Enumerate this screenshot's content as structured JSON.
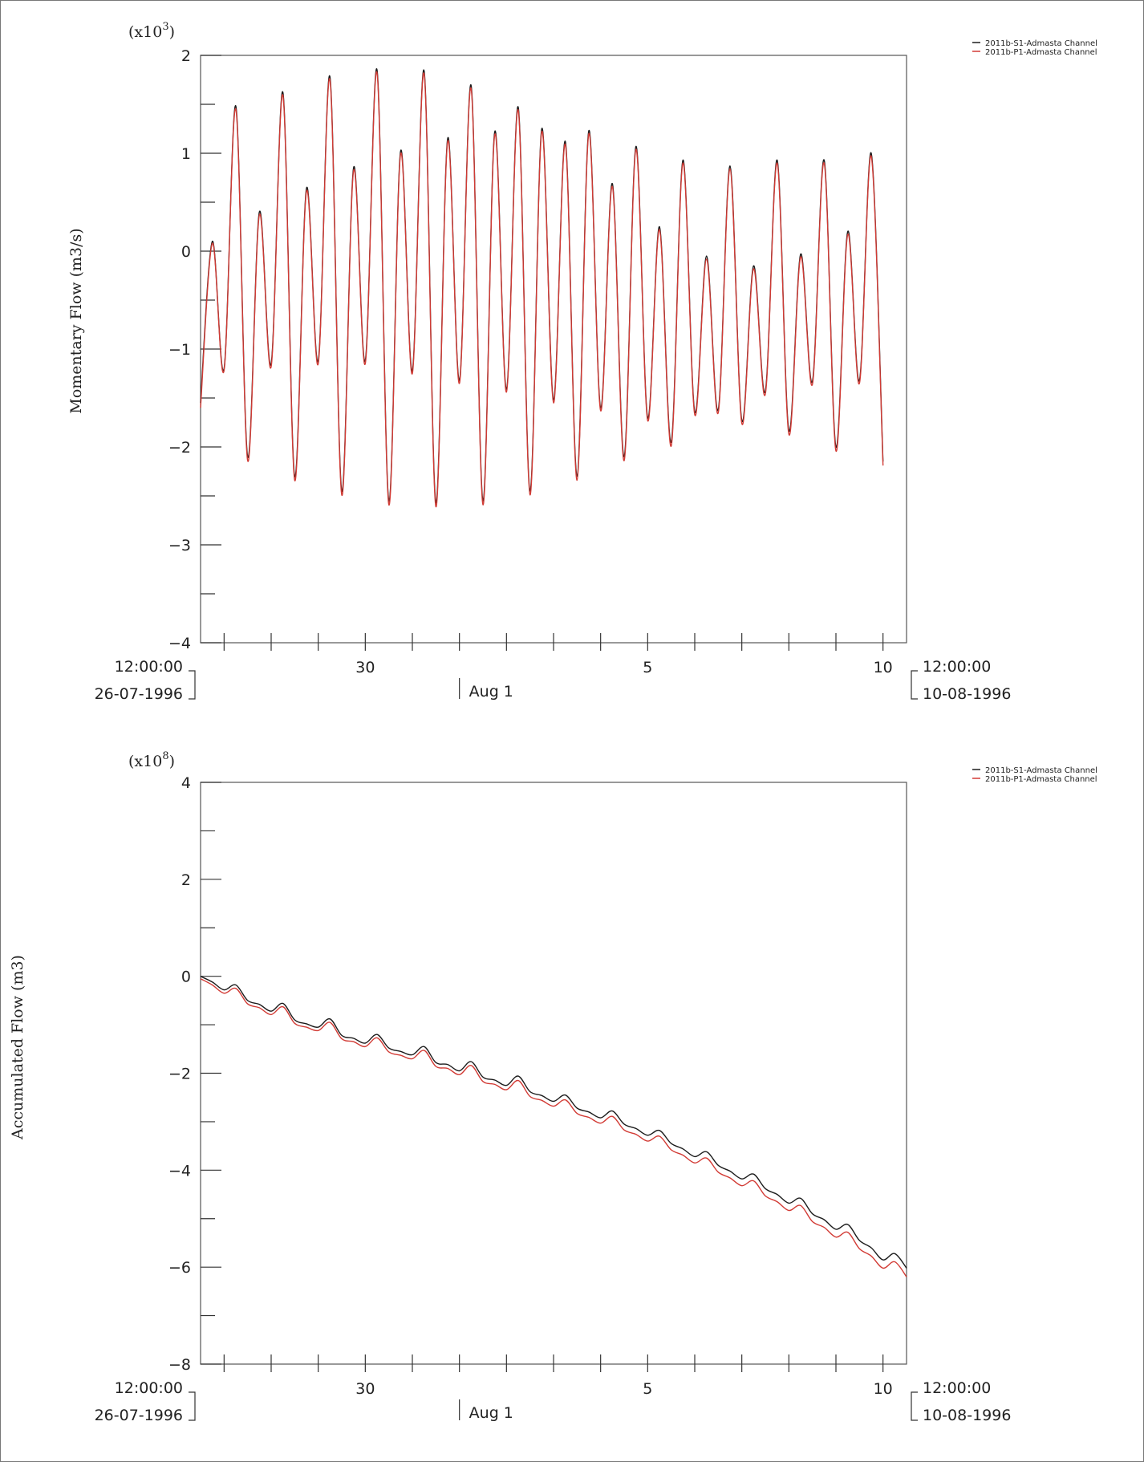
{
  "colors": {
    "series1": "#1c1c1c",
    "series2": "#d23b35",
    "axis": "#333333",
    "frame": "#555555"
  },
  "chart_data": [
    {
      "type": "line",
      "ylabel": "Momentary Flow (m3/s)",
      "y_multiplier": "(x10",
      "y_multiplier_exp": "3",
      "ylim": [
        -4,
        2
      ],
      "yticks": [
        -4,
        -3,
        -2,
        -1,
        0,
        1,
        2
      ],
      "ytick_labels": [
        "−4",
        "−3",
        "−2",
        "−1",
        "0",
        "1",
        "2"
      ],
      "xlim": [
        "1996-07-26 12:00",
        "1996-08-10 12:00"
      ],
      "x_day_labels": [
        {
          "date": "1996-07-30 00:00",
          "label": "30"
        },
        {
          "date": "1996-08-05 00:00",
          "label": "5"
        },
        {
          "date": "1996-08-10 00:00",
          "label": "10"
        }
      ],
      "x_month_label": {
        "date": "1996-08-01 00:00",
        "label": "Aug 1"
      },
      "x_start": {
        "time": "12:00:00",
        "date": "26-07-1996"
      },
      "x_end": {
        "time": "12:00:00",
        "date": "10-08-1996"
      },
      "legend_position": "top-right",
      "grid": false,
      "series": [
        {
          "name": "2011b-S1-Admasta Channel",
          "x_start": "1996-07-26 12:00",
          "x_step_hours": 6,
          "values": [
            -1.55,
            0.1,
            -1.2,
            1.48,
            -2.1,
            0.4,
            -1.15,
            1.62,
            -2.3,
            0.64,
            -1.12,
            1.78,
            -2.45,
            0.85,
            -1.12,
            1.85,
            -2.55,
            1.02,
            -1.22,
            1.84,
            -2.57,
            1.15,
            -1.32,
            1.69,
            -2.55,
            1.22,
            -1.41,
            1.47,
            -2.45,
            1.25,
            -1.52,
            1.12,
            -2.3,
            1.23,
            -1.6,
            0.69,
            -2.1,
            1.07,
            -1.7,
            0.25,
            -1.95,
            0.93,
            -1.64,
            -0.05,
            -1.62,
            0.87,
            -1.73,
            -0.15,
            -1.43,
            0.93,
            -1.83,
            -0.03,
            -1.33,
            0.93,
            -2.0,
            0.2,
            -1.32,
            1.0,
            -2.15
          ]
        },
        {
          "name": "2011b-P1-Admasta Channel",
          "x_start": "1996-07-26 12:00",
          "x_step_hours": 6,
          "values": [
            -1.6,
            0.08,
            -1.22,
            1.45,
            -2.14,
            0.37,
            -1.18,
            1.59,
            -2.34,
            0.61,
            -1.15,
            1.75,
            -2.49,
            0.82,
            -1.15,
            1.82,
            -2.59,
            0.99,
            -1.25,
            1.81,
            -2.61,
            1.12,
            -1.35,
            1.66,
            -2.59,
            1.19,
            -1.44,
            1.44,
            -2.49,
            1.22,
            -1.55,
            1.09,
            -2.34,
            1.2,
            -1.63,
            0.66,
            -2.14,
            1.04,
            -1.73,
            0.22,
            -1.99,
            0.9,
            -1.67,
            -0.08,
            -1.65,
            0.84,
            -1.76,
            -0.18,
            -1.46,
            0.9,
            -1.87,
            -0.06,
            -1.36,
            0.9,
            -2.04,
            0.17,
            -1.35,
            0.97,
            -2.19
          ]
        }
      ]
    },
    {
      "type": "line",
      "ylabel": "Accumulated Flow (m3)",
      "y_multiplier": "(x10",
      "y_multiplier_exp": "8",
      "ylim": [
        -8,
        4
      ],
      "yticks": [
        -8,
        -6,
        -4,
        -2,
        0,
        2,
        4
      ],
      "ytick_labels": [
        "−8",
        "−6",
        "−4",
        "−2",
        "0",
        "2",
        "4"
      ],
      "xlim": [
        "1996-07-26 12:00",
        "1996-08-10 12:00"
      ],
      "x_day_labels": [
        {
          "date": "1996-07-30 00:00",
          "label": "30"
        },
        {
          "date": "1996-08-05 00:00",
          "label": "5"
        },
        {
          "date": "1996-08-10 00:00",
          "label": "10"
        }
      ],
      "x_month_label": {
        "date": "1996-08-01 00:00",
        "label": "Aug 1"
      },
      "x_start": {
        "time": "12:00:00",
        "date": "26-07-1996"
      },
      "x_end": {
        "time": "12:00:00",
        "date": "10-08-1996"
      },
      "legend_position": "top-right",
      "grid": false,
      "series": [
        {
          "name": "2011b-S1-Admasta Channel",
          "x_start": "1996-07-26 12:00",
          "x_step_hours": 6,
          "values": [
            0,
            -0.12,
            -0.28,
            -0.18,
            -0.5,
            -0.58,
            -0.72,
            -0.56,
            -0.9,
            -0.98,
            -1.05,
            -0.88,
            -1.22,
            -1.28,
            -1.38,
            -1.2,
            -1.48,
            -1.55,
            -1.62,
            -1.45,
            -1.78,
            -1.82,
            -1.95,
            -1.76,
            -2.08,
            -2.14,
            -2.25,
            -2.06,
            -2.38,
            -2.46,
            -2.58,
            -2.45,
            -2.72,
            -2.8,
            -2.92,
            -2.78,
            -3.05,
            -3.14,
            -3.28,
            -3.18,
            -3.45,
            -3.56,
            -3.72,
            -3.62,
            -3.9,
            -4.02,
            -4.18,
            -4.08,
            -4.38,
            -4.5,
            -4.68,
            -4.58,
            -4.9,
            -5.02,
            -5.22,
            -5.12,
            -5.45,
            -5.6,
            -5.85,
            -5.72,
            -6.02,
            -6.12,
            -6.3
          ]
        },
        {
          "name": "2011b-P1-Admasta Channel",
          "x_start": "1996-07-26 12:00",
          "x_step_hours": 6,
          "values": [
            -0.05,
            -0.18,
            -0.35,
            -0.25,
            -0.57,
            -0.65,
            -0.79,
            -0.63,
            -0.97,
            -1.05,
            -1.12,
            -0.95,
            -1.29,
            -1.35,
            -1.45,
            -1.27,
            -1.56,
            -1.63,
            -1.7,
            -1.53,
            -1.86,
            -1.9,
            -2.03,
            -1.84,
            -2.17,
            -2.23,
            -2.34,
            -2.15,
            -2.48,
            -2.56,
            -2.68,
            -2.55,
            -2.83,
            -2.91,
            -3.03,
            -2.89,
            -3.17,
            -3.26,
            -3.4,
            -3.3,
            -3.58,
            -3.69,
            -3.85,
            -3.75,
            -4.04,
            -4.16,
            -4.32,
            -4.22,
            -4.53,
            -4.65,
            -4.83,
            -4.73,
            -5.06,
            -5.18,
            -5.38,
            -5.28,
            -5.62,
            -5.77,
            -6.02,
            -5.89,
            -6.2,
            -6.3,
            -6.48
          ]
        }
      ]
    }
  ]
}
